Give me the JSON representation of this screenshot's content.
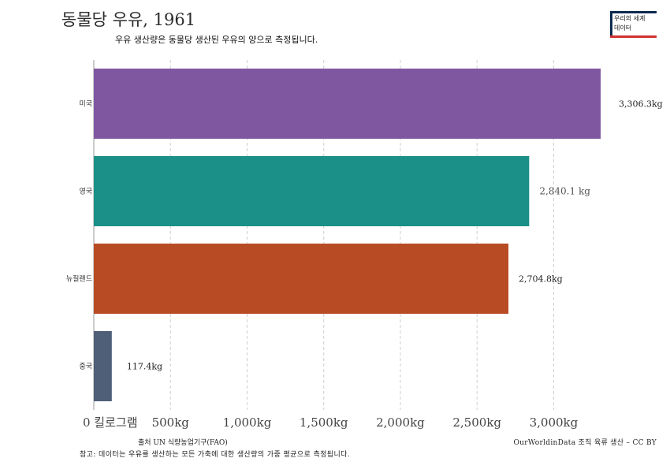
{
  "chart_data": {
    "type": "bar",
    "orientation": "horizontal",
    "title": "동물당 우유, 1961",
    "subtitle": "우유 생산량은 동물당 생산된 우유의 양으로 측정됩니다.",
    "categories": [
      "미국",
      "영국",
      "뉴질랜드",
      "중국"
    ],
    "values": [
      3306.3,
      2840.1,
      2704.8,
      117.4
    ],
    "value_labels": [
      "3,306.3kg",
      "2,840.1 kg",
      "2,704.8kg",
      "117.4kg"
    ],
    "colors": [
      "#7e57a0",
      "#1a9088",
      "#b84a24",
      "#4f5f78"
    ],
    "x_ticks": [
      0,
      500,
      1000,
      1500,
      2000,
      2500,
      3000
    ],
    "x_tick_labels": [
      "0 킬로그램",
      "500kg",
      "1,000kg",
      "1,500kg",
      "2,000kg",
      "2,500kg",
      "3,000kg"
    ],
    "xlim": [
      0,
      3306.3
    ],
    "grid": "vertical-dashed",
    "legend": "none"
  },
  "logo": {
    "text_line1": "우리의 세계",
    "text_line2": "데이터"
  },
  "footer": {
    "source": "출처 UN 식량농업기구(FAO)",
    "credit": "OurWorldinData 조직 육류 생산 – CC BY",
    "note": "참고: 데이터는 우유를 생산하는 모든 가축에 대한 생산량의 가중 평균으로 측정됩니다."
  }
}
